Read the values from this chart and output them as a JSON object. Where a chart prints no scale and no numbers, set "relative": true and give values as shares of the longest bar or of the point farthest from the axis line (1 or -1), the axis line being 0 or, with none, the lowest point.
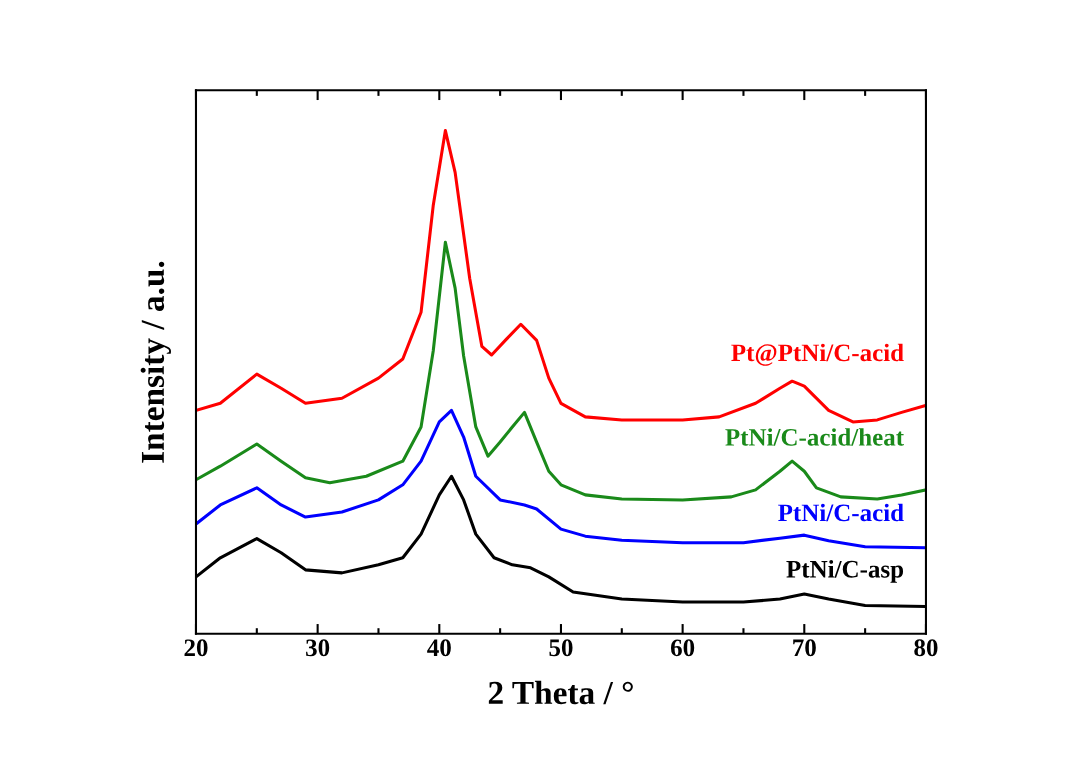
{
  "chart_data": {
    "type": "line",
    "relative": true,
    "xlabel": "2 Theta / °",
    "ylabel": "Intensity / a.u.",
    "xlim": [
      20,
      80
    ],
    "xticks": [
      20,
      30,
      40,
      50,
      60,
      70,
      80
    ],
    "tick_labels": "x",
    "grid": false,
    "legend": false,
    "marker": "none",
    "line_style": "solid",
    "series": [
      {
        "name": "Pt@PtNi/C-acid",
        "color": "#ff0000",
        "x": [
          20,
          22,
          25,
          27,
          29,
          32,
          35,
          37,
          38.5,
          39.5,
          40.5,
          41.3,
          42.5,
          43.5,
          44.3,
          45.5,
          46.7,
          48,
          49,
          50,
          52,
          55,
          60,
          63,
          66,
          68,
          69,
          70,
          72,
          74,
          76,
          78,
          80
        ],
        "values": [
          0.444,
          0.458,
          0.516,
          0.488,
          0.458,
          0.468,
          0.508,
          0.546,
          0.639,
          0.851,
          1.0,
          0.917,
          0.706,
          0.571,
          0.554,
          0.585,
          0.615,
          0.583,
          0.508,
          0.458,
          0.431,
          0.425,
          0.425,
          0.431,
          0.458,
          0.488,
          0.502,
          0.492,
          0.444,
          0.421,
          0.425,
          0.44,
          0.454
        ]
      },
      {
        "name": "PtNi/C-acid/heat",
        "color": "#1a8a1a",
        "x": [
          20,
          22,
          25,
          27,
          29,
          31,
          34,
          37,
          38.5,
          39.5,
          40.5,
          41.3,
          42,
          43,
          44,
          45,
          46,
          47,
          48,
          49,
          50,
          52,
          55,
          60,
          64,
          66,
          68,
          69,
          70,
          71,
          73,
          76,
          78,
          80
        ],
        "values": [
          0.306,
          0.333,
          0.377,
          0.343,
          0.31,
          0.3,
          0.313,
          0.343,
          0.411,
          0.562,
          0.778,
          0.687,
          0.552,
          0.411,
          0.353,
          0.381,
          0.411,
          0.44,
          0.381,
          0.323,
          0.296,
          0.276,
          0.268,
          0.266,
          0.272,
          0.286,
          0.323,
          0.343,
          0.323,
          0.29,
          0.272,
          0.268,
          0.276,
          0.286
        ]
      },
      {
        "name": "PtNi/C-acid",
        "color": "#0000ff",
        "x": [
          20,
          22,
          25,
          27,
          29,
          32,
          35,
          37,
          38.5,
          40,
          41,
          42,
          43,
          45,
          47,
          48,
          50,
          52,
          55,
          60,
          65,
          68,
          70,
          72,
          75,
          80
        ],
        "values": [
          0.218,
          0.256,
          0.29,
          0.256,
          0.232,
          0.242,
          0.266,
          0.296,
          0.343,
          0.421,
          0.444,
          0.391,
          0.313,
          0.266,
          0.256,
          0.248,
          0.208,
          0.194,
          0.186,
          0.181,
          0.181,
          0.19,
          0.196,
          0.185,
          0.173,
          0.171
        ]
      },
      {
        "name": "PtNi/C-asp",
        "color": "#000000",
        "x": [
          20,
          22,
          25,
          27,
          29,
          32,
          35,
          37,
          38.5,
          40,
          41,
          42,
          43,
          44.5,
          46,
          47.5,
          49,
          51,
          55,
          60,
          65,
          68,
          70,
          72,
          75,
          80
        ],
        "values": [
          0.113,
          0.151,
          0.189,
          0.161,
          0.127,
          0.121,
          0.137,
          0.151,
          0.198,
          0.276,
          0.313,
          0.266,
          0.198,
          0.151,
          0.137,
          0.131,
          0.113,
          0.083,
          0.069,
          0.063,
          0.063,
          0.069,
          0.079,
          0.069,
          0.056,
          0.054
        ]
      }
    ]
  }
}
